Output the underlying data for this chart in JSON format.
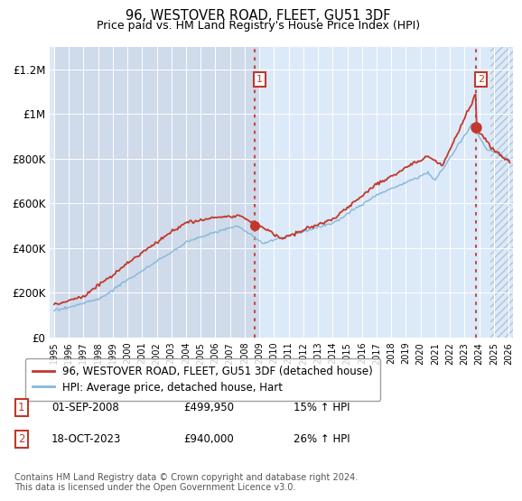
{
  "title": "96, WESTOVER ROAD, FLEET, GU51 3DF",
  "subtitle": "Price paid vs. HM Land Registry's House Price Index (HPI)",
  "ylabel_ticks": [
    "£0",
    "£200K",
    "£400K",
    "£600K",
    "£800K",
    "£1M",
    "£1.2M"
  ],
  "ytick_values": [
    0,
    200000,
    400000,
    600000,
    800000,
    1000000,
    1200000
  ],
  "ylim": [
    0,
    1300000
  ],
  "xlim_start": 1995.0,
  "xlim_end": 2026.0,
  "bg_color_left": "#cfdaeb",
  "bg_color_right": "#dce9f8",
  "hatch_start": 2024.75,
  "grid_color": "#ffffff",
  "red_line_color": "#c0392b",
  "blue_line_color": "#85b8d9",
  "sale1_x": 2008.67,
  "sale1_y": 499950,
  "sale2_x": 2023.79,
  "sale2_y": 940000,
  "vline_color": "#c0392b",
  "box_color": "#c0392b",
  "legend_line1": "96, WESTOVER ROAD, FLEET, GU51 3DF (detached house)",
  "legend_line2": "HPI: Average price, detached house, Hart",
  "table_rows": [
    {
      "num": "1",
      "date": "01-SEP-2008",
      "price": "£499,950",
      "change": "15% ↑ HPI"
    },
    {
      "num": "2",
      "date": "18-OCT-2023",
      "price": "£940,000",
      "change": "26% ↑ HPI"
    }
  ],
  "footer": "Contains HM Land Registry data © Crown copyright and database right 2024.\nThis data is licensed under the Open Government Licence v3.0.",
  "xtick_years": [
    1995,
    1996,
    1997,
    1998,
    1999,
    2000,
    2001,
    2002,
    2003,
    2004,
    2005,
    2006,
    2007,
    2008,
    2009,
    2010,
    2011,
    2012,
    2013,
    2014,
    2015,
    2016,
    2017,
    2018,
    2019,
    2020,
    2021,
    2022,
    2023,
    2024,
    2025,
    2026
  ]
}
